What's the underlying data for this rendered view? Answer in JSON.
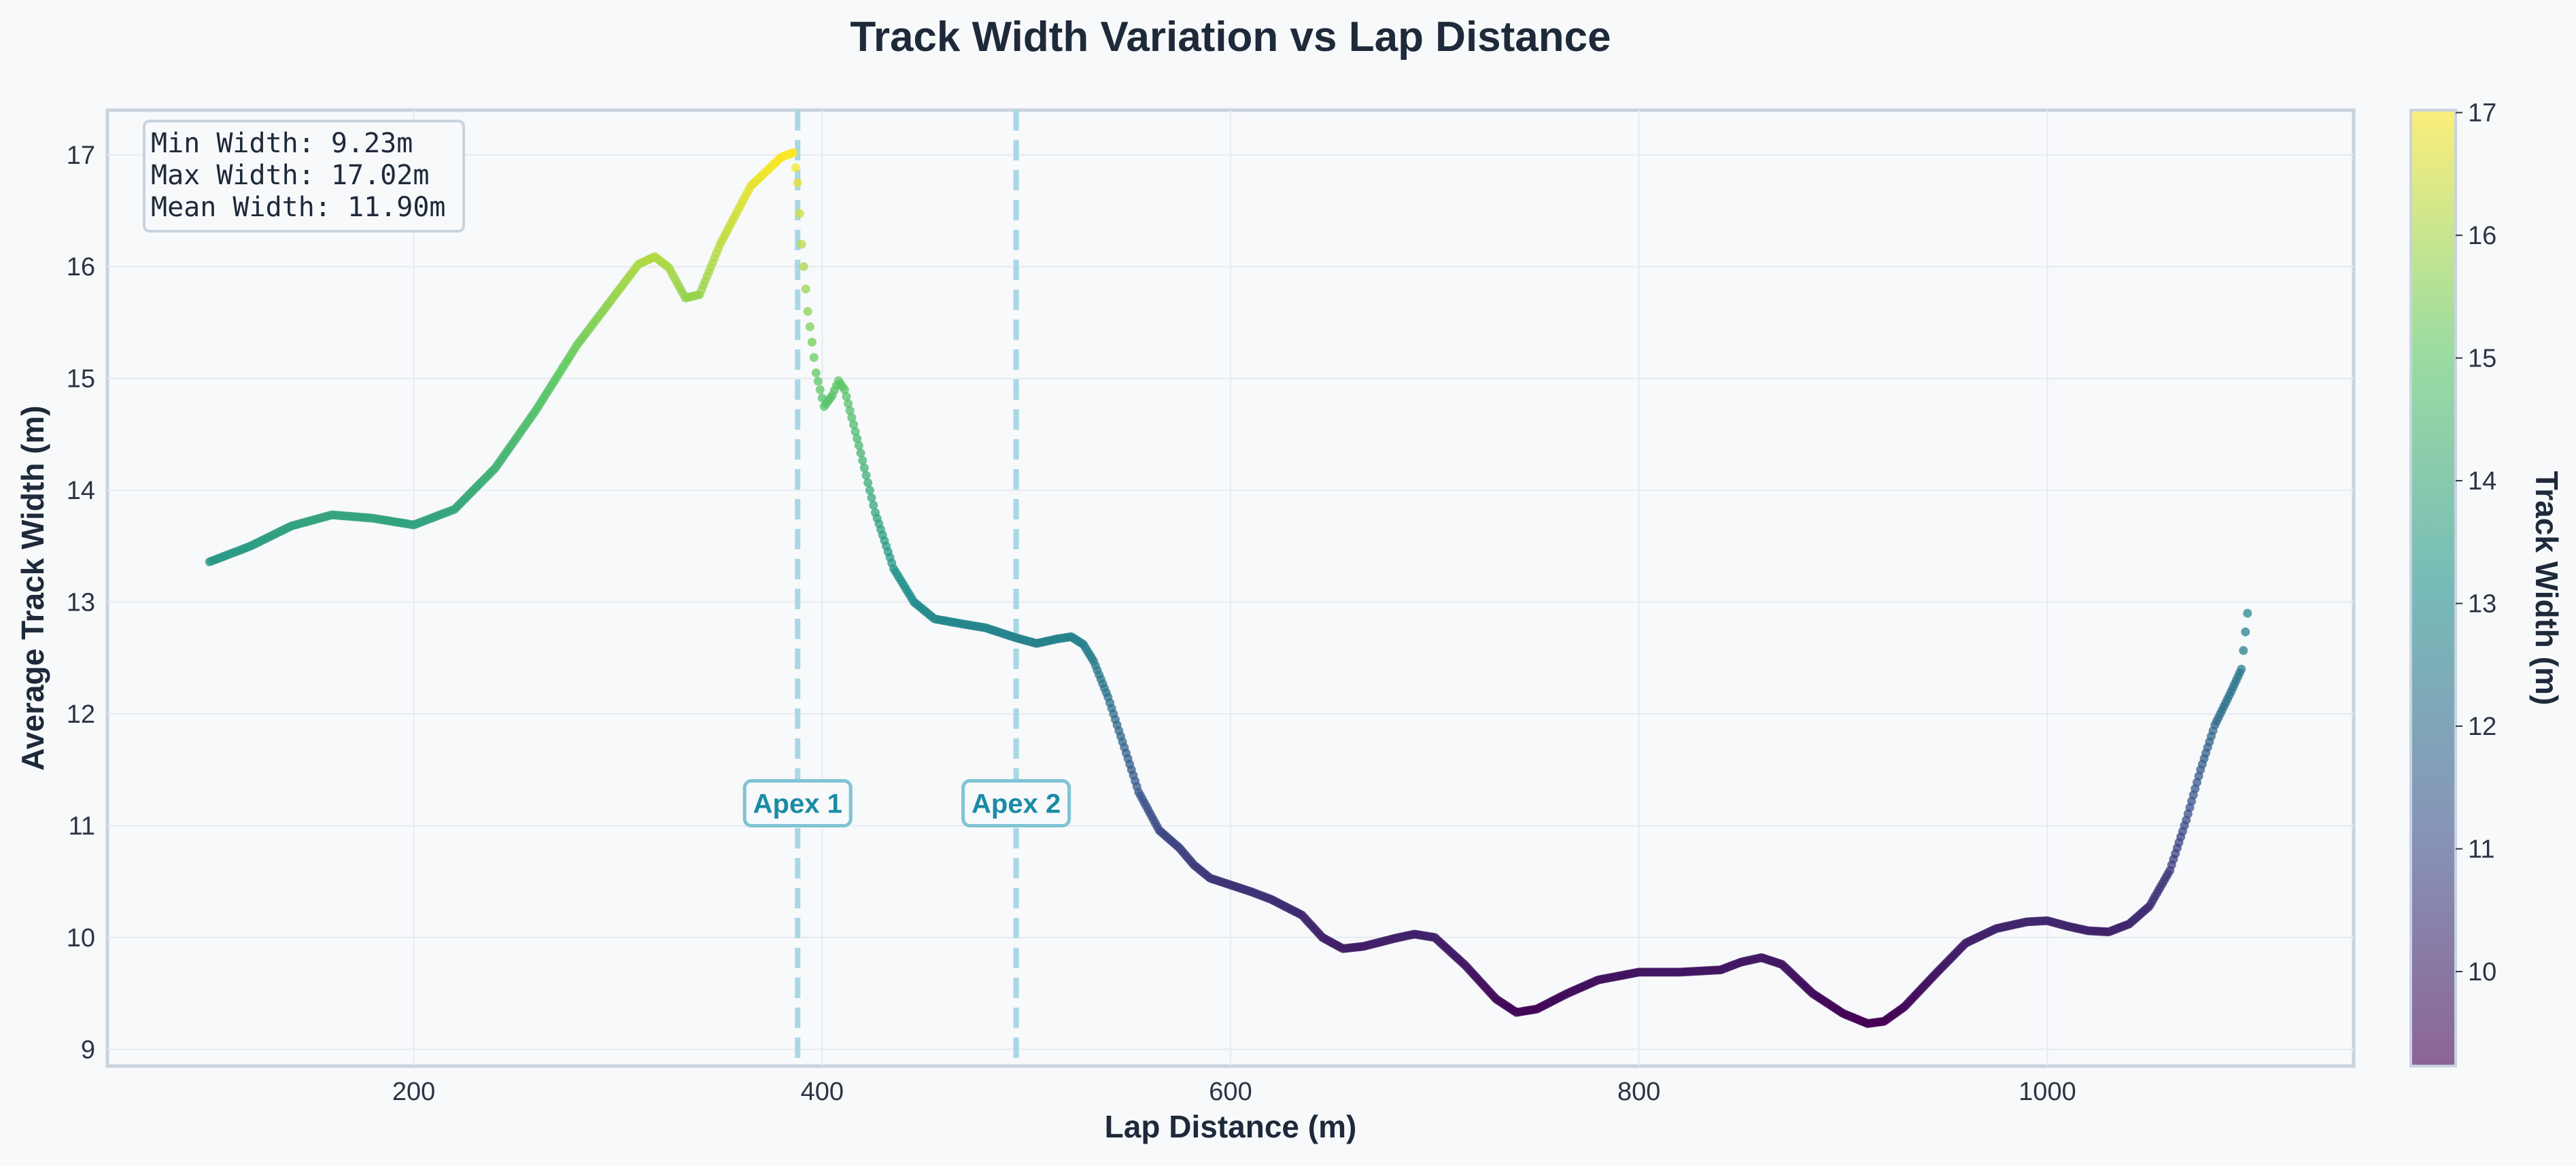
{
  "chart_data": {
    "type": "scatter",
    "title": "Track Width Variation vs Lap Distance",
    "xlabel": "Lap Distance (m)",
    "ylabel": "Average Track Width (m)",
    "colorbar_label": "Track Width (m)",
    "xlim": [
      50,
      1150
    ],
    "ylim": [
      8.85,
      17.4
    ],
    "x_ticks": [
      200,
      400,
      600,
      800,
      1000
    ],
    "y_ticks": [
      9,
      10,
      11,
      12,
      13,
      14,
      15,
      16,
      17
    ],
    "colorbar_range": [
      9.23,
      17.02
    ],
    "colorbar_ticks": [
      10,
      11,
      12,
      13,
      14,
      15,
      16,
      17
    ],
    "colormap": [
      "#440154",
      "#3b528b",
      "#21918c",
      "#5ec962",
      "#fde725"
    ],
    "grid": true,
    "stats": {
      "min_text": "Min Width: 9.23m",
      "max_text": "Max Width: 17.02m",
      "mean_text": "Mean Width: 11.90m"
    },
    "annotations": [
      {
        "label": "Apex 1",
        "x": 388,
        "color": "#1b8ba5"
      },
      {
        "label": "Apex 2",
        "x": 495,
        "color": "#1b8ba5"
      }
    ],
    "series": [
      {
        "points": [
          [
            100,
            13.36
          ],
          [
            120,
            13.5
          ],
          [
            140,
            13.68
          ],
          [
            160,
            13.78
          ],
          [
            180,
            13.75
          ],
          [
            200,
            13.69
          ],
          [
            220,
            13.83
          ],
          [
            240,
            14.2
          ],
          [
            260,
            14.72
          ],
          [
            280,
            15.3
          ],
          [
            300,
            15.78
          ],
          [
            310,
            16.02
          ],
          [
            318,
            16.09
          ],
          [
            325,
            15.99
          ],
          [
            333,
            15.72
          ],
          [
            340,
            15.75
          ],
          [
            350,
            16.2
          ],
          [
            365,
            16.72
          ],
          [
            380,
            16.98
          ],
          [
            386,
            17.02
          ],
          [
            388,
            16.75
          ],
          [
            390,
            16.2
          ],
          [
            393,
            15.6
          ],
          [
            397,
            15.05
          ],
          [
            401,
            14.75
          ],
          [
            405,
            14.85
          ],
          [
            408,
            14.98
          ],
          [
            411,
            14.9
          ],
          [
            418,
            14.4
          ],
          [
            426,
            13.8
          ],
          [
            435,
            13.3
          ],
          [
            445,
            13.0
          ],
          [
            455,
            12.85
          ],
          [
            470,
            12.8
          ],
          [
            480,
            12.77
          ],
          [
            495,
            12.68
          ],
          [
            505,
            12.63
          ],
          [
            515,
            12.67
          ],
          [
            522,
            12.69
          ],
          [
            528,
            12.62
          ],
          [
            533,
            12.47
          ],
          [
            540,
            12.15
          ],
          [
            548,
            11.7
          ],
          [
            555,
            11.3
          ],
          [
            565,
            10.96
          ],
          [
            575,
            10.8
          ],
          [
            582,
            10.65
          ],
          [
            590,
            10.53
          ],
          [
            600,
            10.47
          ],
          [
            610,
            10.41
          ],
          [
            620,
            10.34
          ],
          [
            635,
            10.2
          ],
          [
            645,
            10.0
          ],
          [
            655,
            9.9
          ],
          [
            665,
            9.92
          ],
          [
            680,
            9.99
          ],
          [
            690,
            10.03
          ],
          [
            700,
            10.0
          ],
          [
            715,
            9.75
          ],
          [
            730,
            9.45
          ],
          [
            740,
            9.33
          ],
          [
            750,
            9.36
          ],
          [
            765,
            9.5
          ],
          [
            780,
            9.62
          ],
          [
            800,
            9.69
          ],
          [
            820,
            9.69
          ],
          [
            840,
            9.71
          ],
          [
            850,
            9.78
          ],
          [
            860,
            9.82
          ],
          [
            870,
            9.76
          ],
          [
            885,
            9.5
          ],
          [
            900,
            9.32
          ],
          [
            912,
            9.23
          ],
          [
            920,
            9.25
          ],
          [
            930,
            9.38
          ],
          [
            945,
            9.67
          ],
          [
            960,
            9.95
          ],
          [
            975,
            10.08
          ],
          [
            990,
            10.14
          ],
          [
            1000,
            10.15
          ],
          [
            1010,
            10.1
          ],
          [
            1020,
            10.06
          ],
          [
            1030,
            10.05
          ],
          [
            1040,
            10.12
          ],
          [
            1050,
            10.28
          ],
          [
            1060,
            10.6
          ],
          [
            1068,
            11.05
          ],
          [
            1075,
            11.5
          ],
          [
            1082,
            11.9
          ],
          [
            1090,
            12.2
          ],
          [
            1095,
            12.4
          ],
          [
            1098,
            12.9
          ]
        ]
      }
    ]
  }
}
